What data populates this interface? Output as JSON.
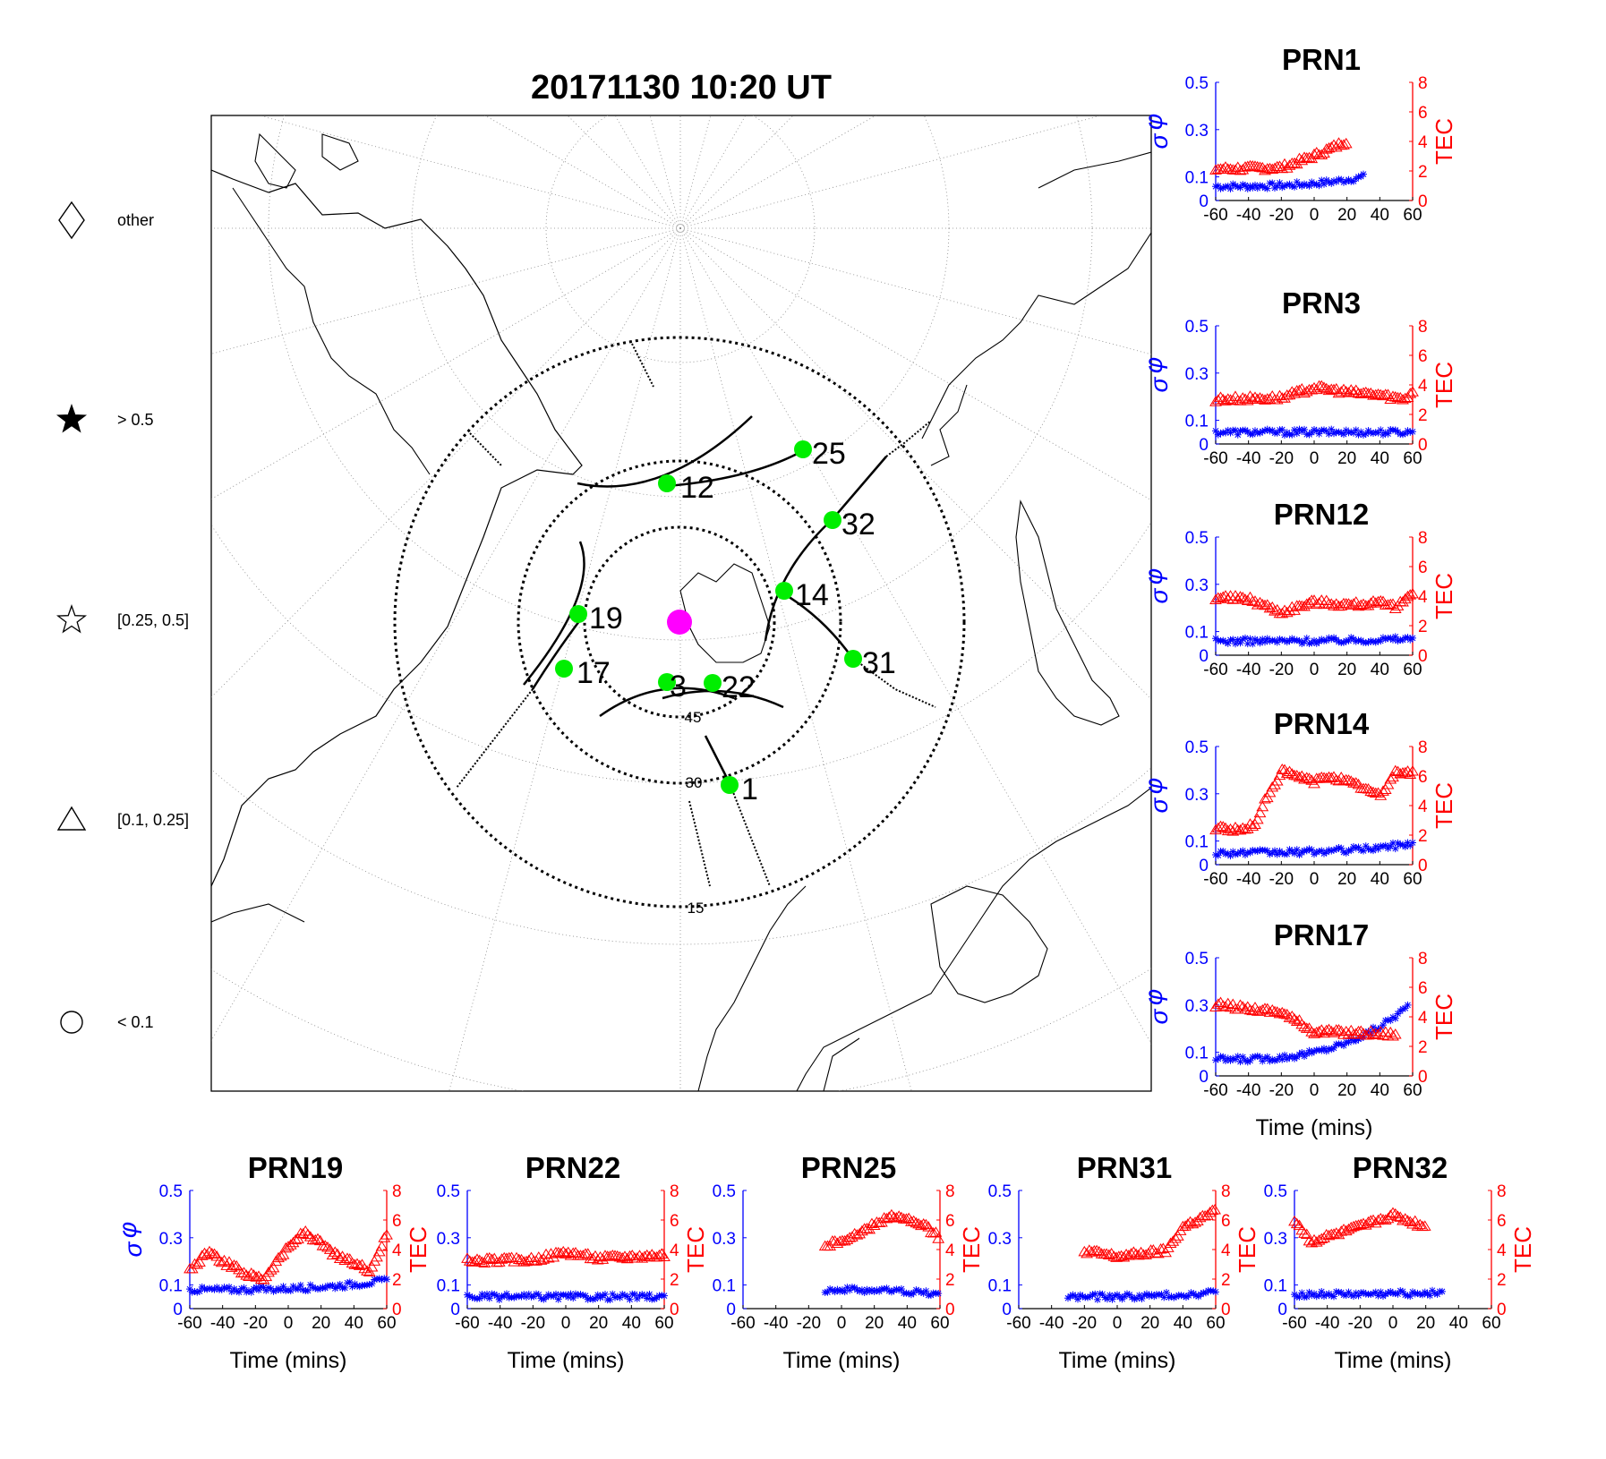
{
  "chart_data": {
    "main_map": {
      "type": "scatter",
      "title": "20171130 10:20 UT",
      "elevation_rings": [
        "15",
        "30",
        "45"
      ],
      "satellites": [
        {
          "prn": "1"
        },
        {
          "prn": "3"
        },
        {
          "prn": "12"
        },
        {
          "prn": "14"
        },
        {
          "prn": "17"
        },
        {
          "prn": "19"
        },
        {
          "prn": "22"
        },
        {
          "prn": "25"
        },
        {
          "prn": "31"
        },
        {
          "prn": "32"
        }
      ],
      "marker_color": "#00ee00",
      "receiver_color": "#ff00ff",
      "legend": [
        {
          "symbol": "diamond",
          "label": "other"
        },
        {
          "symbol": "filled-star",
          "label": "> 0.5"
        },
        {
          "symbol": "open-star",
          "label": "[0.25, 0.5]"
        },
        {
          "symbol": "triangle",
          "label": "[0.1, 0.25]"
        },
        {
          "symbol": "circle",
          "label": "< 0.1"
        }
      ]
    },
    "panels": [
      {
        "title": "PRN1",
        "sigma_series": {
          "start": -60,
          "end": 30,
          "base": 0.06,
          "end_val": 0.1
        },
        "tec_series": {
          "start": -60,
          "end": 20,
          "segments": [
            [
              -60,
              2.1
            ],
            [
              -20,
              2.2
            ],
            [
              0,
              3.0
            ],
            [
              20,
              4.0
            ]
          ]
        }
      },
      {
        "title": "PRN3",
        "sigma_series": {
          "start": -60,
          "end": 60,
          "base": 0.05,
          "end_val": 0.05
        },
        "tec_series": {
          "start": -60,
          "end": 60,
          "segments": [
            [
              -60,
              3.0
            ],
            [
              -20,
              3.1
            ],
            [
              0,
              3.8
            ],
            [
              20,
              3.5
            ],
            [
              40,
              3.3
            ],
            [
              55,
              3.0
            ],
            [
              60,
              3.6
            ]
          ]
        }
      },
      {
        "title": "PRN12",
        "sigma_series": {
          "start": -60,
          "end": 60,
          "base": 0.06,
          "end_val": 0.07
        },
        "tec_series": {
          "start": -60,
          "end": 60,
          "segments": [
            [
              -60,
              3.9
            ],
            [
              -40,
              3.8
            ],
            [
              -20,
              2.9
            ],
            [
              0,
              3.6
            ],
            [
              20,
              3.4
            ],
            [
              40,
              3.5
            ],
            [
              50,
              3.2
            ],
            [
              60,
              4.3
            ]
          ]
        }
      },
      {
        "title": "PRN14",
        "sigma_series": {
          "start": -60,
          "end": 60,
          "base": 0.05,
          "end_val": 0.09
        },
        "tec_series": {
          "start": -60,
          "end": 60,
          "segments": [
            [
              -60,
              2.5
            ],
            [
              -45,
              2.3
            ],
            [
              -35,
              2.8
            ],
            [
              -30,
              4.3
            ],
            [
              -20,
              6.3
            ],
            [
              0,
              5.6
            ],
            [
              10,
              6.0
            ],
            [
              30,
              5.2
            ],
            [
              40,
              4.6
            ],
            [
              50,
              6.3
            ],
            [
              60,
              6.2
            ]
          ]
        }
      },
      {
        "title": "PRN17",
        "sigma_series": {
          "start": -60,
          "end": 58,
          "base": 0.07,
          "end_val": 0.3
        },
        "tec_series": {
          "start": -60,
          "end": 50,
          "segments": [
            [
              -60,
              4.8
            ],
            [
              -20,
              4.3
            ],
            [
              0,
              3.0
            ],
            [
              50,
              2.8
            ]
          ]
        }
      },
      {
        "title": "PRN19",
        "sigma_series": {
          "start": -60,
          "end": 60,
          "base": 0.08,
          "end_val": 0.12
        },
        "tec_series": {
          "start": -60,
          "end": 60,
          "segments": [
            [
              -60,
              2.5
            ],
            [
              -50,
              3.8
            ],
            [
              -40,
              3.2
            ],
            [
              -25,
              2.3
            ],
            [
              -15,
              2.0
            ],
            [
              -5,
              3.5
            ],
            [
              10,
              5.2
            ],
            [
              30,
              3.5
            ],
            [
              50,
              2.6
            ],
            [
              60,
              5.0
            ]
          ]
        }
      },
      {
        "title": "PRN22",
        "sigma_series": {
          "start": -60,
          "end": 60,
          "base": 0.05,
          "end_val": 0.05
        },
        "tec_series": {
          "start": -60,
          "end": 60,
          "segments": [
            [
              -60,
              3.2
            ],
            [
              -20,
              3.3
            ],
            [
              0,
              3.8
            ],
            [
              20,
              3.4
            ],
            [
              40,
              3.5
            ],
            [
              60,
              3.6
            ]
          ]
        }
      },
      {
        "title": "PRN25",
        "sigma_series": {
          "start": -10,
          "end": 60,
          "base": 0.08,
          "end_val": 0.06
        },
        "tec_series": {
          "start": -10,
          "end": 60,
          "segments": [
            [
              -10,
              4.2
            ],
            [
              10,
              5.0
            ],
            [
              30,
              6.3
            ],
            [
              50,
              5.6
            ],
            [
              60,
              4.8
            ]
          ]
        }
      },
      {
        "title": "PRN31",
        "sigma_series": {
          "start": -30,
          "end": 60,
          "base": 0.05,
          "end_val": 0.07
        },
        "tec_series": {
          "start": -20,
          "end": 60,
          "segments": [
            [
              -20,
              3.9
            ],
            [
              0,
              3.5
            ],
            [
              30,
              3.9
            ],
            [
              40,
              5.5
            ],
            [
              60,
              6.6
            ]
          ]
        }
      },
      {
        "title": "PRN32",
        "sigma_series": {
          "start": -60,
          "end": 30,
          "base": 0.06,
          "end_val": 0.07
        },
        "tec_series": {
          "start": -60,
          "end": 20,
          "segments": [
            [
              -60,
              6.0
            ],
            [
              -50,
              4.5
            ],
            [
              -35,
              5.0
            ],
            [
              -20,
              5.5
            ],
            [
              0,
              6.3
            ],
            [
              20,
              5.5
            ]
          ]
        }
      }
    ],
    "x_ticks": [
      "-60",
      "-40",
      "-20",
      "0",
      "20",
      "40",
      "60"
    ],
    "sigma_ticks": [
      "0",
      "0.1",
      "0.3",
      "0.5"
    ],
    "tec_ticks": [
      "0",
      "2",
      "4",
      "6",
      "8"
    ],
    "xlim": [
      -60,
      60
    ],
    "sigma_ylim": [
      0,
      0.5
    ],
    "tec_ylim": [
      0,
      8
    ],
    "xlabel": "Time (mins)",
    "sigma_label": "σ",
    "phi_label": "φ",
    "tec_label": "TEC",
    "sigma_color": "#0000ff",
    "tec_color": "#ff0000"
  }
}
